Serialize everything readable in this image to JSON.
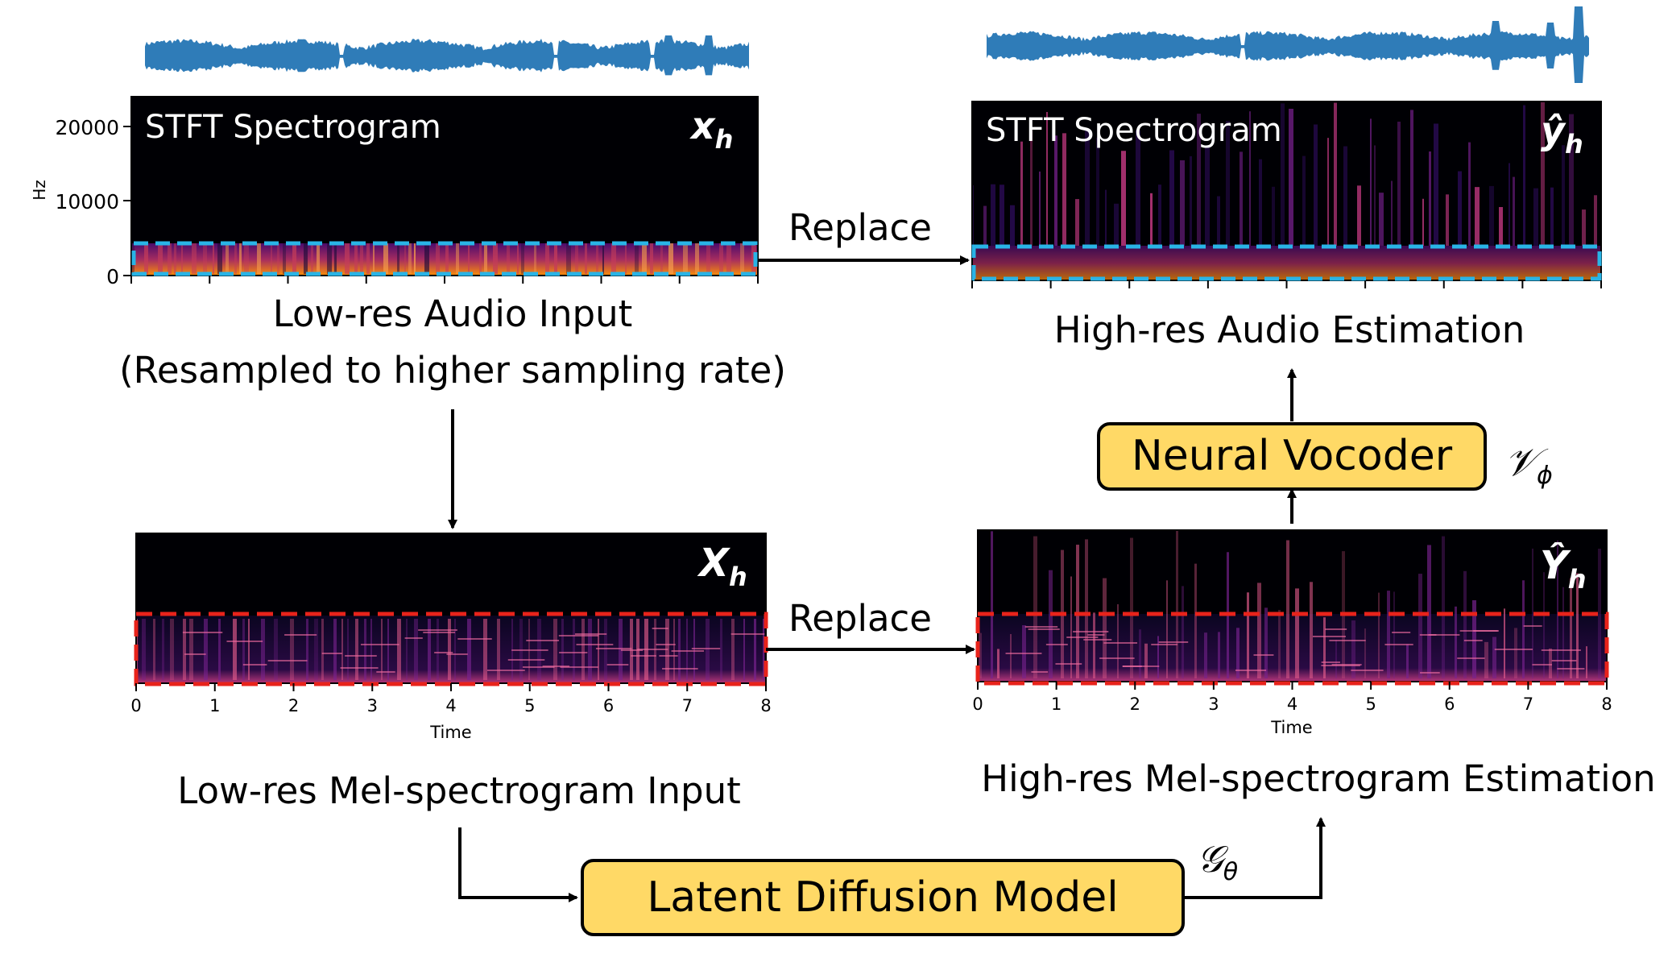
{
  "spectrograms": {
    "stft_low": {
      "title": "STFT Spectrogram",
      "symbol": "x",
      "subscript": "h",
      "y_axis_label": "Hz",
      "y_ticks": [
        "20000",
        "10000",
        "0"
      ]
    },
    "stft_high": {
      "title": "STFT Spectrogram",
      "symbol": "ŷ",
      "subscript": "h"
    },
    "mel_low": {
      "symbol": "X",
      "subscript": "h",
      "x_axis_label": "Time",
      "x_ticks": [
        "0",
        "1",
        "2",
        "3",
        "4",
        "5",
        "6",
        "7",
        "8"
      ]
    },
    "mel_high": {
      "symbol": "Ŷ",
      "subscript": "h",
      "x_axis_label": "Time",
      "x_ticks": [
        "0",
        "1",
        "2",
        "3",
        "4",
        "5",
        "6",
        "7",
        "8"
      ]
    }
  },
  "captions": {
    "low_audio_line1": "Low-res Audio Input",
    "low_audio_line2": "(Resampled to higher sampling rate)",
    "high_audio": "High-res Audio Estimation",
    "low_mel": "Low-res Mel-spectrogram Input",
    "high_mel": "High-res Mel-spectrogram Estimation"
  },
  "arrows": {
    "replace_top": "Replace",
    "replace_bottom": "Replace"
  },
  "models": {
    "vocoder": {
      "label": "Neural Vocoder",
      "symbol": "𝒱",
      "subscript": "ϕ"
    },
    "diffusion": {
      "label": "Latent Diffusion Model",
      "symbol": "𝒢",
      "subscript": "θ"
    }
  },
  "colors": {
    "waveform": "#2f7cb8",
    "spectrogram_bg": "#000004",
    "box_fill": "#ffd966",
    "replace_box_top": "#29b4e6",
    "replace_box_bottom": "#e8231b"
  }
}
